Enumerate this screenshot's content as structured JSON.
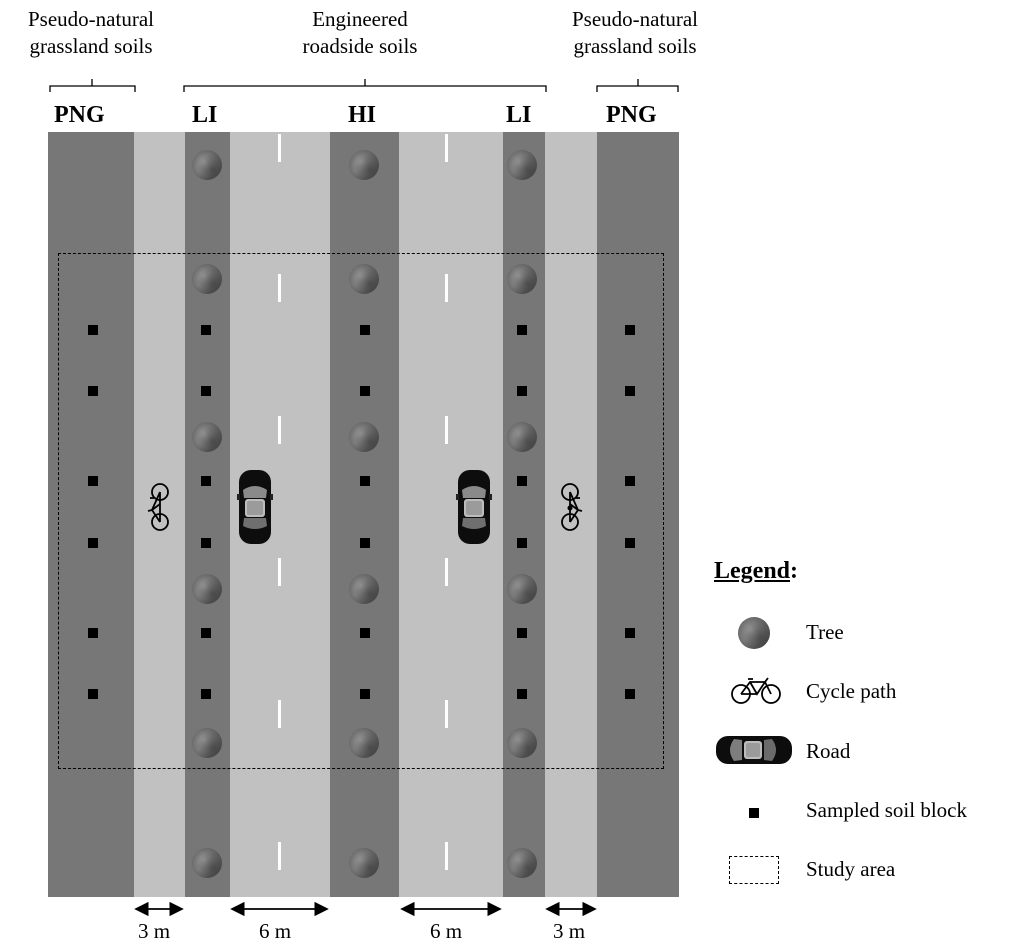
{
  "header": {
    "left_group": "Pseudo-natural\ngrassland soils",
    "center_group": "Engineered\nroadside soils",
    "right_group": "Pseudo-natural\ngrassland soils"
  },
  "zones": {
    "png_left": "PNG",
    "li_left": "LI",
    "hi": "HI",
    "li_right": "LI",
    "png_right": "PNG"
  },
  "measurements": {
    "left_path": "3 m",
    "left_road": "6 m",
    "right_road": "6 m",
    "right_path": "3 m"
  },
  "legend": {
    "title": "Legend",
    "title_suffix": ":",
    "items": [
      {
        "label": "Tree",
        "icon": "tree-icon"
      },
      {
        "label": "Cycle path",
        "icon": "bicycle-icon"
      },
      {
        "label": "Road",
        "icon": "car-icon"
      },
      {
        "label": "Sampled soil block",
        "icon": "soil-block-icon"
      },
      {
        "label": "Study area",
        "icon": "dashed-rectangle-icon"
      }
    ]
  },
  "colors": {
    "grass_strip": "#777777",
    "paved": "#c1c1c1",
    "lane_marking": "#ffffff",
    "soil_block": "#000000"
  }
}
